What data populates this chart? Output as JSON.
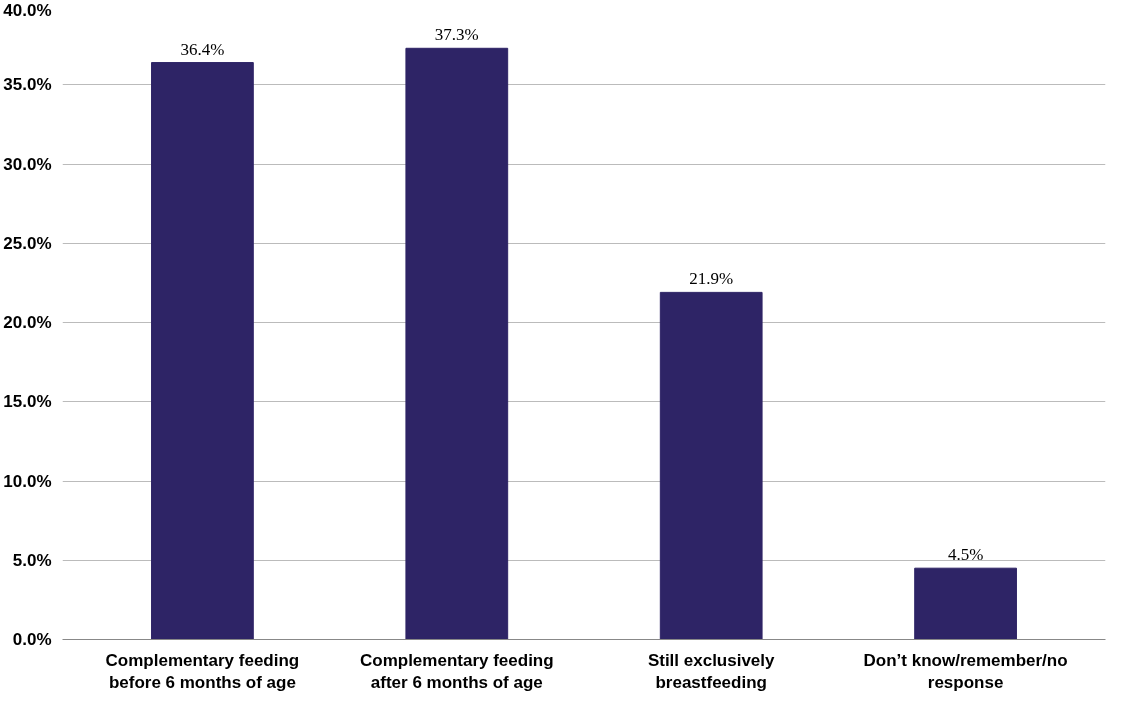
{
  "chart_data": {
    "type": "bar",
    "categories": [
      "Complementary feeding before 6 months of age",
      "Complementary feeding after 6 months of age",
      "Still exclusively breastfeeding",
      "Don’t know/remember/no response"
    ],
    "values": [
      36.4,
      37.3,
      21.9,
      4.5
    ],
    "value_labels": [
      "36.4%",
      "37.3%",
      "21.9%",
      "4.5%"
    ],
    "color": "#2e2466",
    "ylim": [
      0,
      40
    ],
    "yticks": [
      {
        "value": 0,
        "label": "0.0%"
      },
      {
        "value": 5,
        "label": "5.0%"
      },
      {
        "value": 10,
        "label": "10.0%"
      },
      {
        "value": 15,
        "label": "15.0%"
      },
      {
        "value": 20,
        "label": "20.0%"
      },
      {
        "value": 25,
        "label": "25.0%"
      },
      {
        "value": 30,
        "label": "30.0%"
      },
      {
        "value": 35,
        "label": "35.0%"
      },
      {
        "value": 40,
        "label": "40.0%"
      }
    ],
    "grid": "y"
  }
}
